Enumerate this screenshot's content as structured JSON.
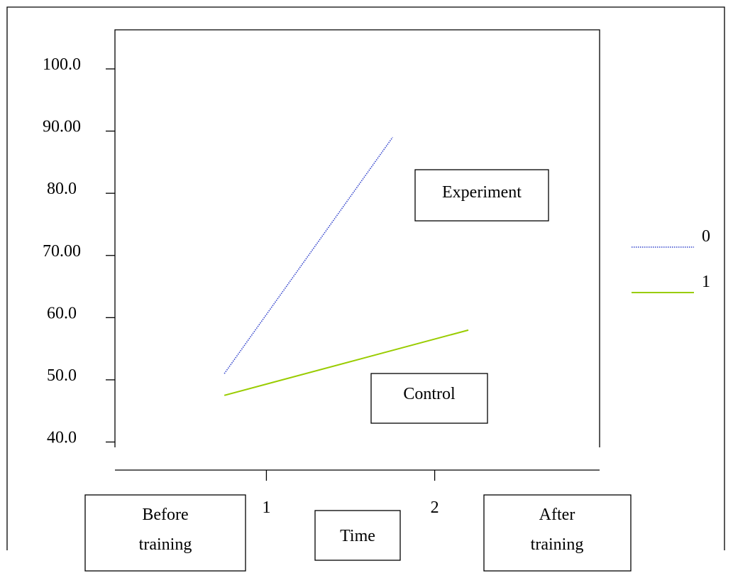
{
  "chart_data": {
    "type": "line",
    "xlabel": "Time",
    "x_ticks": [
      "1",
      "2"
    ],
    "y_tick_labels": [
      "100.0",
      "90.00",
      "80.0",
      "70.00",
      "60.0",
      "50.0",
      "40.0"
    ],
    "y_tick_values": [
      100,
      90,
      80,
      70,
      60,
      50,
      40
    ],
    "ylim": [
      38,
      104
    ],
    "xlim": [
      0.1,
      2.98
    ],
    "series": [
      {
        "name": "0",
        "color": "#3344cc",
        "style": "dotted",
        "x": [
          0.75,
          1.75
        ],
        "y": [
          51,
          89
        ]
      },
      {
        "name": "1",
        "color": "#99cc00",
        "style": "solid",
        "x": [
          0.75,
          2.2
        ],
        "y": [
          47.5,
          58
        ]
      }
    ],
    "legend_position": "right",
    "annotations": [
      "Experiment",
      "Control"
    ],
    "category_boxes": [
      {
        "line1": "Before",
        "line2": "training"
      },
      {
        "line1": "After",
        "line2": "training"
      }
    ],
    "grid": false
  }
}
